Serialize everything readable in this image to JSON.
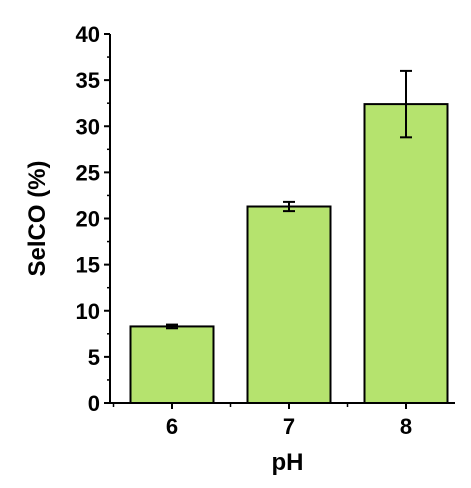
{
  "chart_data": {
    "type": "bar",
    "categories": [
      "6",
      "7",
      "8"
    ],
    "values": [
      8.3,
      21.3,
      32.4
    ],
    "errors": [
      0.2,
      0.5,
      3.6
    ],
    "xlabel": "pH",
    "ylabel": "SelCO (%)",
    "ylim": [
      0,
      40
    ],
    "yticks": [
      "0",
      "5",
      "10",
      "15",
      "20",
      "25",
      "30",
      "35",
      "40"
    ],
    "grid": false,
    "bar_color": "#b5e36e",
    "edge_color": "#000000"
  }
}
